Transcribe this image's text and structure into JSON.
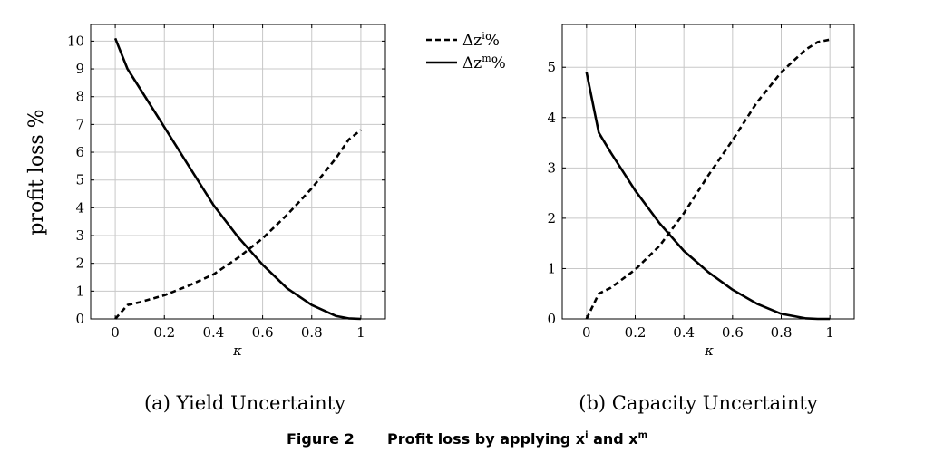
{
  "chart_data": [
    {
      "type": "line",
      "caption": "(a) Yield Uncertainty",
      "ylabel": "profit loss %",
      "xlabel": "κ",
      "xlim": [
        -0.1,
        1.1
      ],
      "ylim": [
        0,
        10.6
      ],
      "xticks": [
        0,
        0.2,
        0.4,
        0.6,
        0.8,
        1
      ],
      "xtick_labels": [
        "0",
        "0.2",
        "0.4",
        "0.6",
        "0.8",
        "1"
      ],
      "yticks": [
        0,
        1,
        2,
        3,
        4,
        5,
        6,
        7,
        8,
        9,
        10
      ],
      "ytick_labels": [
        "0",
        "1",
        "2",
        "3",
        "4",
        "5",
        "6",
        "7",
        "8",
        "9",
        "10"
      ],
      "grid": true,
      "series": [
        {
          "name": "Δz^i%",
          "style": "dashed",
          "x": [
            0,
            0.05,
            0.1,
            0.2,
            0.3,
            0.4,
            0.5,
            0.6,
            0.7,
            0.8,
            0.9,
            0.95,
            1
          ],
          "y": [
            0,
            0.5,
            0.6,
            0.85,
            1.2,
            1.6,
            2.2,
            2.9,
            3.75,
            4.7,
            5.8,
            6.45,
            6.8
          ]
        },
        {
          "name": "Δz^m%",
          "style": "solid",
          "x": [
            0,
            0.05,
            0.1,
            0.2,
            0.3,
            0.4,
            0.5,
            0.6,
            0.7,
            0.8,
            0.9,
            0.95,
            1
          ],
          "y": [
            10.1,
            9.0,
            8.3,
            6.9,
            5.5,
            4.1,
            2.95,
            1.95,
            1.1,
            0.5,
            0.1,
            0.02,
            0
          ]
        }
      ]
    },
    {
      "type": "line",
      "caption": "(b) Capacity Uncertainty",
      "xlabel": "κ",
      "xlim": [
        -0.1,
        1.1
      ],
      "ylim": [
        0,
        5.85
      ],
      "xticks": [
        0,
        0.2,
        0.4,
        0.6,
        0.8,
        1
      ],
      "xtick_labels": [
        "0",
        "0.2",
        "0.4",
        "0.6",
        "0.8",
        "1"
      ],
      "yticks": [
        0,
        1,
        2,
        3,
        4,
        5
      ],
      "ytick_labels": [
        "0",
        "1",
        "2",
        "3",
        "4",
        "5"
      ],
      "grid": true,
      "series": [
        {
          "name": "Δz^i%",
          "style": "dashed",
          "x": [
            0,
            0.05,
            0.1,
            0.2,
            0.3,
            0.4,
            0.5,
            0.6,
            0.7,
            0.8,
            0.9,
            0.95,
            1
          ],
          "y": [
            0,
            0.5,
            0.62,
            0.98,
            1.45,
            2.1,
            2.85,
            3.55,
            4.3,
            4.9,
            5.35,
            5.5,
            5.55
          ]
        },
        {
          "name": "Δz^m%",
          "style": "solid",
          "x": [
            0,
            0.05,
            0.1,
            0.2,
            0.3,
            0.4,
            0.5,
            0.6,
            0.7,
            0.8,
            0.9,
            0.95,
            1
          ],
          "y": [
            4.9,
            3.7,
            3.3,
            2.55,
            1.9,
            1.35,
            0.93,
            0.58,
            0.3,
            0.1,
            0.01,
            0,
            0
          ]
        }
      ]
    }
  ],
  "legend": {
    "placement": "top-center",
    "items": [
      {
        "base": "Δz",
        "sup": "i",
        "suffix": "%",
        "style": "dashed"
      },
      {
        "base": "Δz",
        "sup": "m",
        "suffix": "%",
        "style": "solid"
      }
    ]
  },
  "figure_caption": {
    "label": "Figure 2",
    "text": "Profit loss by applying x",
    "sup1": "i",
    "middle": " and x",
    "sup2": "m"
  }
}
